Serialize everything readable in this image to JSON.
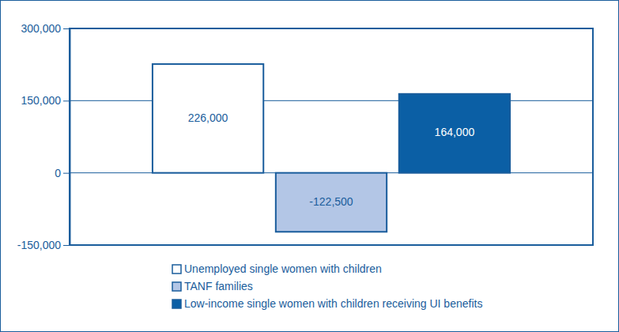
{
  "chart_data": {
    "type": "bar",
    "categories": [
      null
    ],
    "series": [
      {
        "name": "Unemployed single women with children",
        "color": "#ffffff",
        "values": [
          226000
        ],
        "value_labels": [
          "226,000"
        ]
      },
      {
        "name": "TANF families",
        "color": "#b3c6e6",
        "values": [
          -122500
        ],
        "value_labels": [
          "-122,500"
        ]
      },
      {
        "name": "Low-income single women with children receiving UI benefits",
        "color": "#0b5fa5",
        "values": [
          164000
        ],
        "value_labels": [
          "164,000"
        ]
      }
    ],
    "ylim": [
      -150000,
      300000
    ],
    "yticks": [
      {
        "value": -150000,
        "label": "-150,000"
      },
      0,
      {
        "value": 150000,
        "label": "150,000"
      },
      {
        "value": 300000,
        "label": "300,000"
      }
    ],
    "grid": true,
    "data_labels": true,
    "legend": "bottom",
    "tick_labels": "y"
  }
}
